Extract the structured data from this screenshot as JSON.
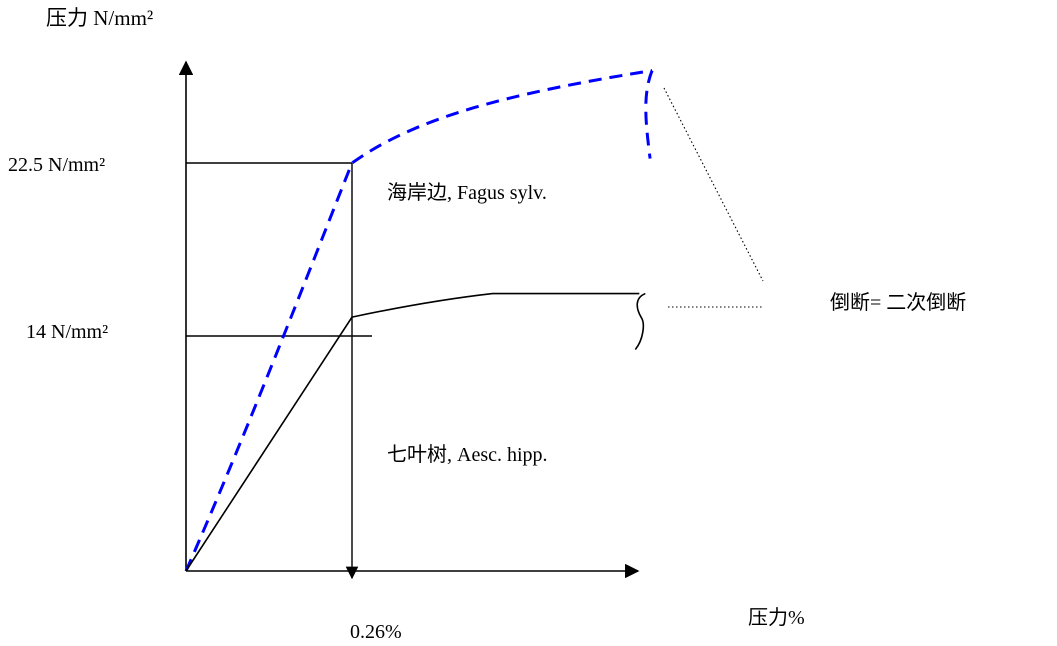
{
  "chart_data": {
    "type": "line",
    "title": "",
    "ylabel": "压力 N/mm²",
    "xlabel": "压力%",
    "x_unit": "%",
    "y_unit": "N/mm²",
    "y_ticks": [
      {
        "value": 22.5,
        "label": "22.5 N/mm²"
      },
      {
        "value": 14,
        "label": "14 N/mm²"
      }
    ],
    "x_ticks": [
      {
        "value": 0.26,
        "label": "0.26%"
      }
    ],
    "series": [
      {
        "name": "海岸边, Fagus sylv.",
        "color": "#0000ff",
        "style": "dashed",
        "points": [
          [
            0,
            0
          ],
          [
            0.26,
            22.5
          ],
          [
            0.73,
            27.6
          ]
        ],
        "drop_after_peak": true
      },
      {
        "name": "七叶树, Aesc. hipp.",
        "color": "#000000",
        "style": "solid",
        "points": [
          [
            0,
            0
          ],
          [
            0.26,
            14
          ],
          [
            0.48,
            15.3
          ],
          [
            0.71,
            15.3
          ]
        ],
        "drop_after_peak": true
      }
    ],
    "annotations": [
      {
        "text": "倒断= 二次倒断"
      }
    ]
  }
}
